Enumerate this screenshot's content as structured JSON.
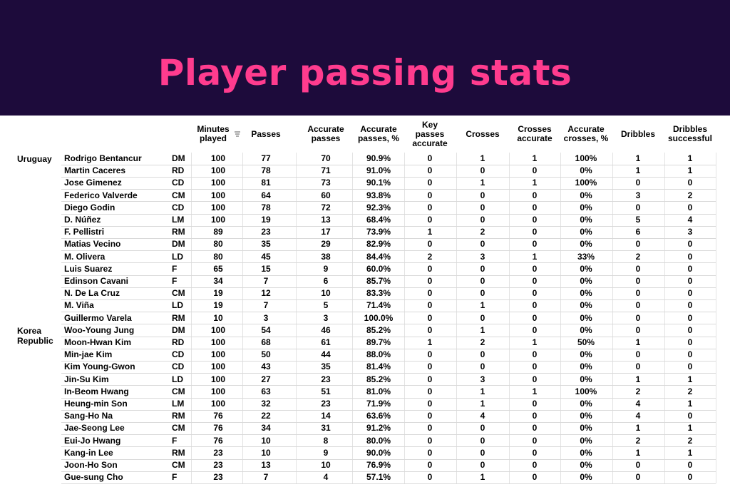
{
  "title": "Player passing stats",
  "colors": {
    "banner": "#1d0b3b",
    "title": "#ff3c8e"
  },
  "chart_data": {
    "type": "table",
    "columns": [
      "Minutes played",
      "Passes",
      "Accurate passes",
      "Accurate passes, %",
      "Key passes accurate",
      "Crosses",
      "Crosses accurate",
      "Accurate crosses, %",
      "Dribbles",
      "Dribbles successful"
    ],
    "teams": [
      {
        "name": "Uruguay",
        "rows": [
          [
            "Rodrigo Bentancur",
            "DM",
            "100",
            "77",
            "70",
            "90.9%",
            "0",
            "1",
            "1",
            "100%",
            "1",
            "1"
          ],
          [
            "Martin Caceres",
            "RD",
            "100",
            "78",
            "71",
            "91.0%",
            "0",
            "0",
            "0",
            "0%",
            "1",
            "1"
          ],
          [
            "Jose Gimenez",
            "CD",
            "100",
            "81",
            "73",
            "90.1%",
            "0",
            "1",
            "1",
            "100%",
            "0",
            "0"
          ],
          [
            "Federico Valverde",
            "CM",
            "100",
            "64",
            "60",
            "93.8%",
            "0",
            "0",
            "0",
            "0%",
            "3",
            "2"
          ],
          [
            "Diego Godin",
            "CD",
            "100",
            "78",
            "72",
            "92.3%",
            "0",
            "0",
            "0",
            "0%",
            "0",
            "0"
          ],
          [
            "D. Núñez",
            "LM",
            "100",
            "19",
            "13",
            "68.4%",
            "0",
            "0",
            "0",
            "0%",
            "5",
            "4"
          ],
          [
            "F. Pellistri",
            "RM",
            "89",
            "23",
            "17",
            "73.9%",
            "1",
            "2",
            "0",
            "0%",
            "6",
            "3"
          ],
          [
            "Matias Vecino",
            "DM",
            "80",
            "35",
            "29",
            "82.9%",
            "0",
            "0",
            "0",
            "0%",
            "0",
            "0"
          ],
          [
            "M. Olivera",
            "LD",
            "80",
            "45",
            "38",
            "84.4%",
            "2",
            "3",
            "1",
            "33%",
            "2",
            "0"
          ],
          [
            "Luis Suarez",
            "F",
            "65",
            "15",
            "9",
            "60.0%",
            "0",
            "0",
            "0",
            "0%",
            "0",
            "0"
          ],
          [
            "Edinson Cavani",
            "F",
            "34",
            "7",
            "6",
            "85.7%",
            "0",
            "0",
            "0",
            "0%",
            "0",
            "0"
          ],
          [
            "N. De La Cruz",
            "CM",
            "19",
            "12",
            "10",
            "83.3%",
            "0",
            "0",
            "0",
            "0%",
            "0",
            "0"
          ],
          [
            "M. Viña",
            "LD",
            "19",
            "7",
            "5",
            "71.4%",
            "0",
            "1",
            "0",
            "0%",
            "0",
            "0"
          ],
          [
            "Guillermo Varela",
            "RM",
            "10",
            "3",
            "3",
            "100.0%",
            "0",
            "0",
            "0",
            "0%",
            "0",
            "0"
          ]
        ]
      },
      {
        "name": "Korea Republic",
        "rows": [
          [
            "Woo-Young Jung",
            "DM",
            "100",
            "54",
            "46",
            "85.2%",
            "0",
            "1",
            "0",
            "0%",
            "0",
            "0"
          ],
          [
            "Moon-Hwan Kim",
            "RD",
            "100",
            "68",
            "61",
            "89.7%",
            "1",
            "2",
            "1",
            "50%",
            "1",
            "0"
          ],
          [
            "Min-jae Kim",
            "CD",
            "100",
            "50",
            "44",
            "88.0%",
            "0",
            "0",
            "0",
            "0%",
            "0",
            "0"
          ],
          [
            "Kim Young-Gwon",
            "CD",
            "100",
            "43",
            "35",
            "81.4%",
            "0",
            "0",
            "0",
            "0%",
            "0",
            "0"
          ],
          [
            "Jin-Su Kim",
            "LD",
            "100",
            "27",
            "23",
            "85.2%",
            "0",
            "3",
            "0",
            "0%",
            "1",
            "1"
          ],
          [
            "In-Beom Hwang",
            "CM",
            "100",
            "63",
            "51",
            "81.0%",
            "0",
            "1",
            "1",
            "100%",
            "2",
            "2"
          ],
          [
            "Heung-min Son",
            "LM",
            "100",
            "32",
            "23",
            "71.9%",
            "0",
            "1",
            "0",
            "0%",
            "4",
            "1"
          ],
          [
            "Sang-Ho Na",
            "RM",
            "76",
            "22",
            "14",
            "63.6%",
            "0",
            "4",
            "0",
            "0%",
            "4",
            "0"
          ],
          [
            "Jae-Seong Lee",
            "CM",
            "76",
            "34",
            "31",
            "91.2%",
            "0",
            "0",
            "0",
            "0%",
            "1",
            "1"
          ],
          [
            "Eui-Jo Hwang",
            "F",
            "76",
            "10",
            "8",
            "80.0%",
            "0",
            "0",
            "0",
            "0%",
            "2",
            "2"
          ],
          [
            "Kang-in Lee",
            "RM",
            "23",
            "10",
            "9",
            "90.0%",
            "0",
            "0",
            "0",
            "0%",
            "1",
            "1"
          ],
          [
            "Joon-Ho Son",
            "CM",
            "23",
            "13",
            "10",
            "76.9%",
            "0",
            "0",
            "0",
            "0%",
            "0",
            "0"
          ],
          [
            "Gue-sung Cho",
            "F",
            "23",
            "7",
            "4",
            "57.1%",
            "0",
            "1",
            "0",
            "0%",
            "0",
            "0"
          ]
        ]
      }
    ]
  }
}
